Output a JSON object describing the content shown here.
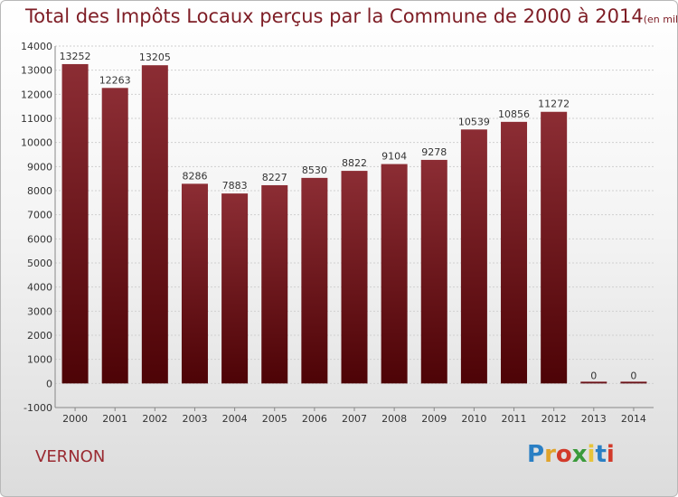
{
  "title": "Total des Impôts Locaux perçus par la Commune de 2000 à 2014",
  "unit": "(en milliers d'€)",
  "commune": "VERNON",
  "logo": {
    "letters": [
      "P",
      "r",
      "o",
      "x",
      "i",
      "t",
      "i"
    ],
    "colors": [
      "#2a7fc4",
      "#e0a32a",
      "#d23a2a",
      "#3a9a3a",
      "#e7c43a",
      "#2a7fc4",
      "#d23a2a"
    ]
  },
  "chart_data": {
    "type": "bar",
    "categories": [
      "2000",
      "2001",
      "2002",
      "2003",
      "2004",
      "2005",
      "2006",
      "2007",
      "2008",
      "2009",
      "2010",
      "2011",
      "2012",
      "2013",
      "2014"
    ],
    "values": [
      13252,
      12263,
      13205,
      8286,
      7883,
      8227,
      8530,
      8822,
      9104,
      9278,
      10539,
      10856,
      11272,
      0,
      0
    ],
    "title": "Total des Impôts Locaux perçus par la Commune de 2000 à 2014",
    "xlabel": "",
    "ylabel": "",
    "ylim": [
      -1000,
      14000
    ],
    "yticks": [
      -1000,
      0,
      1000,
      2000,
      3000,
      4000,
      5000,
      6000,
      7000,
      8000,
      9000,
      10000,
      11000,
      12000,
      13000,
      14000
    ],
    "grid": true,
    "bar_color": "#7a1c24"
  }
}
